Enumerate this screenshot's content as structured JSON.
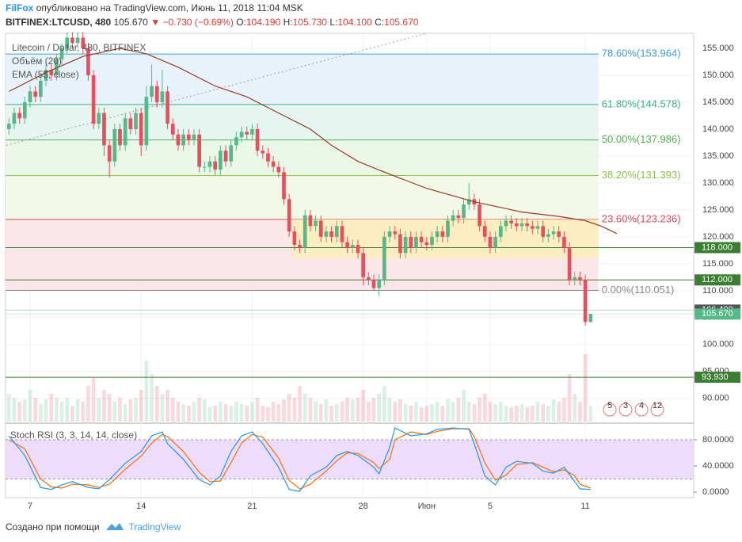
{
  "header": {
    "author": "FilFox",
    "published": "опубликовано на TradingView.com, Июнь 11, 2018 11:04 MSK",
    "symbol": "BITFINEX:LTCUSD, 480",
    "last": "105.670",
    "arrow": "▼",
    "change": "−0.730 (−0.69%)",
    "ohlc": [
      {
        "label": "O:",
        "value": "104.190"
      },
      {
        "label": "H:",
        "value": "105.730"
      },
      {
        "label": "L:",
        "value": "104.100"
      },
      {
        "label": "C:",
        "value": "105.670"
      }
    ]
  },
  "footer": {
    "made_with": "Создано при помощи",
    "brand": "TradingView"
  },
  "chart_data": {
    "type": "candlestick",
    "title": "Litecoin / Dollar, 480, BITFINEX",
    "indicators": [
      "Объём (20)",
      "EMA (55, close)"
    ],
    "up_color": "#53b987",
    "down_color": "#eb4d5c",
    "xlim": [
      -4.64,
      125.5
    ],
    "ylim": [
      85.7,
      157.8
    ],
    "vlim": [
      0,
      100
    ],
    "xticks": [
      {
        "value": 0,
        "label": "7"
      },
      {
        "value": 21,
        "label": "14"
      },
      {
        "value": 42,
        "label": "21"
      },
      {
        "value": 63,
        "label": "28"
      },
      {
        "value": 75,
        "label": "Июн"
      },
      {
        "value": 87,
        "label": "5"
      },
      {
        "value": 105,
        "label": "11"
      }
    ],
    "yticks": [
      {
        "value": 155,
        "label": "155.000"
      },
      {
        "value": 150,
        "label": "150.000"
      },
      {
        "value": 145,
        "label": "145.000"
      },
      {
        "value": 140,
        "label": "140.000"
      },
      {
        "value": 135,
        "label": "135.000"
      },
      {
        "value": 130,
        "label": "130.000"
      },
      {
        "value": 125,
        "label": "125.000"
      },
      {
        "value": 120,
        "label": "120.000"
      },
      {
        "value": 115,
        "label": "115.000"
      },
      {
        "value": 110,
        "label": "110.000"
      },
      {
        "value": 105,
        "label": "105.000"
      },
      {
        "value": 100,
        "label": "100.000"
      },
      {
        "value": 95,
        "label": "95.000"
      },
      {
        "value": 90,
        "label": "90.000"
      }
    ],
    "grid": true,
    "x": [
      -4,
      -3,
      -2,
      -1,
      0,
      1,
      2,
      3,
      4,
      5,
      6,
      7,
      8,
      9,
      10,
      11,
      12,
      13,
      14,
      15,
      16,
      17,
      18,
      19,
      20,
      21,
      22,
      23,
      24,
      25,
      26,
      27,
      28,
      29,
      30,
      31,
      32,
      33,
      34,
      35,
      36,
      37,
      38,
      39,
      40,
      41,
      42,
      43,
      44,
      45,
      46,
      47,
      48,
      49,
      50,
      51,
      52,
      53,
      54,
      55,
      56,
      57,
      58,
      59,
      60,
      61,
      62,
      63,
      64,
      65,
      66,
      67,
      68,
      69,
      70,
      71,
      72,
      73,
      74,
      75,
      76,
      77,
      78,
      79,
      80,
      81,
      82,
      83,
      84,
      85,
      86,
      87,
      88,
      89,
      90,
      91,
      92,
      93,
      94,
      95,
      96,
      97,
      98,
      99,
      100,
      101,
      102,
      103,
      104,
      105,
      106
    ],
    "open": [
      140,
      141,
      143,
      142,
      145,
      147,
      146,
      149,
      151,
      150,
      153,
      155,
      157,
      156,
      157,
      155,
      150,
      141,
      143,
      137,
      134,
      140,
      137,
      142,
      140,
      143,
      137,
      146,
      148,
      145,
      147,
      141,
      139,
      137,
      139,
      138,
      139,
      133,
      133,
      134,
      132.5,
      136,
      134,
      137,
      138.5,
      139.5,
      139,
      140,
      136,
      135.5,
      134,
      133,
      132,
      127,
      121,
      118.5,
      118,
      124,
      122,
      123,
      120,
      121,
      120,
      122,
      119,
      118,
      118.5,
      117,
      112.5,
      112,
      110.5,
      112,
      120,
      121,
      120.5,
      117,
      120,
      118,
      120,
      119,
      118.5,
      120,
      121,
      120,
      123,
      124,
      123.5,
      126,
      127,
      126,
      122,
      120,
      118,
      120,
      122,
      123,
      122.5,
      122,
      122.5,
      122,
      121.5,
      122,
      120,
      120.5,
      121,
      120,
      118,
      112,
      112.5,
      112,
      104.19
    ],
    "high": [
      142,
      144,
      144,
      146,
      148,
      148,
      150,
      152,
      152,
      154,
      156,
      158,
      158,
      158,
      158,
      156,
      151,
      144,
      144,
      138,
      141,
      141,
      143,
      143,
      144,
      144,
      148,
      152,
      149,
      151,
      148,
      142,
      140,
      140,
      140,
      140,
      140,
      134,
      135,
      135,
      137,
      137,
      138,
      139.5,
      140.5,
      140.5,
      141,
      141,
      137,
      136.5,
      135,
      134,
      133,
      128,
      122,
      119.5,
      125,
      125,
      124,
      124,
      122,
      122,
      123,
      123,
      120,
      119.5,
      119.5,
      118,
      113.5,
      113,
      113,
      121,
      122,
      122,
      121.5,
      121,
      121,
      121,
      121,
      120,
      121,
      122,
      122,
      124,
      125,
      125,
      127,
      130,
      128,
      127,
      123,
      121,
      121,
      123,
      124,
      124,
      123.5,
      123.5,
      123.5,
      123,
      123,
      123,
      121.5,
      122,
      122,
      121,
      119,
      113.5,
      113.5,
      113,
      105.73
    ],
    "low": [
      139,
      140,
      141,
      141,
      144,
      145,
      145,
      148,
      149,
      149,
      152,
      154,
      155,
      155,
      154,
      149,
      140,
      140,
      135,
      131,
      133,
      136,
      136,
      139,
      139,
      135,
      136,
      145,
      144,
      144,
      140,
      138,
      136,
      136,
      137,
      137,
      132,
      132,
      132,
      131.5,
      131.5,
      133,
      133,
      136,
      137.5,
      138,
      138,
      135,
      134.5,
      133,
      132,
      131,
      126,
      120,
      117.5,
      117,
      117,
      121,
      121,
      119,
      119,
      119,
      119,
      118,
      117,
      117,
      116,
      111,
      111,
      110,
      109,
      111,
      119,
      119.5,
      116,
      116,
      117,
      117,
      118,
      117.5,
      117.5,
      119,
      119,
      119,
      122,
      122.5,
      122.5,
      125,
      125,
      121,
      119,
      117,
      117,
      119,
      121,
      121.5,
      121,
      121,
      121,
      120.5,
      120.5,
      119,
      119,
      119.5,
      119,
      117,
      111,
      111,
      111,
      103.5,
      104.1
    ],
    "close": [
      141,
      143,
      142,
      145,
      147,
      146,
      149,
      151,
      150,
      153,
      155,
      157,
      156,
      157,
      155,
      150,
      141,
      143,
      137,
      134,
      140,
      137,
      142,
      140,
      143,
      137,
      146,
      148,
      145,
      147,
      141,
      139,
      137,
      139,
      138,
      139,
      133,
      133,
      134,
      132.5,
      136,
      134,
      137,
      138.5,
      139.5,
      139,
      140,
      136,
      135.5,
      134,
      133,
      132,
      127,
      121,
      118.5,
      118,
      124,
      122,
      123,
      120,
      121,
      120,
      122,
      119,
      118,
      118.5,
      117,
      112.5,
      112,
      110.5,
      112,
      120,
      121,
      120.5,
      117,
      120,
      118,
      120,
      119,
      118.5,
      120,
      121,
      120,
      123,
      124,
      123.5,
      126,
      127,
      126,
      122,
      120,
      118,
      120,
      122,
      123,
      122.5,
      122,
      122.5,
      122,
      121.5,
      122,
      120,
      120.5,
      121,
      120,
      118,
      112,
      112.5,
      112,
      104.19,
      105.67
    ],
    "volume": [
      35,
      30,
      25,
      28,
      40,
      30,
      22,
      28,
      35,
      30,
      25,
      30,
      20,
      28,
      25,
      45,
      55,
      30,
      40,
      35,
      25,
      30,
      22,
      28,
      30,
      40,
      77,
      60,
      45,
      35,
      40,
      30,
      25,
      22,
      20,
      25,
      30,
      28,
      18,
      20,
      25,
      22,
      20,
      25,
      22,
      20,
      25,
      30,
      20,
      18,
      25,
      22,
      28,
      35,
      30,
      45,
      35,
      30,
      25,
      22,
      28,
      20,
      22,
      25,
      30,
      28,
      30,
      40,
      25,
      30,
      35,
      45,
      30,
      25,
      28,
      22,
      20,
      25,
      18,
      20,
      22,
      25,
      20,
      28,
      25,
      30,
      40,
      25,
      22,
      30,
      35,
      25,
      22,
      25,
      20,
      18,
      20,
      22,
      18,
      20,
      25,
      22,
      20,
      28,
      25,
      30,
      60,
      35,
      25,
      85,
      20
    ],
    "ema": {
      "color": "#9b3a22",
      "x": [
        -4,
        3,
        10,
        17,
        22,
        28,
        35,
        41,
        47,
        53,
        57,
        62,
        66,
        71,
        75,
        84,
        93,
        100,
        105,
        108,
        111
      ],
      "values": [
        147,
        150.5,
        153.5,
        155,
        154,
        151.5,
        148,
        146,
        143,
        140,
        137,
        134,
        132.4,
        130.5,
        129,
        126.5,
        124.6,
        123.8,
        123,
        122,
        120.6
      ]
    },
    "trendline": {
      "color": "#9e9e9e",
      "x": [
        -4.5,
        75
      ],
      "values": [
        137,
        157.8
      ]
    },
    "zone": {
      "color": "#fbefb8",
      "x": [
        49.5,
        107.5
      ],
      "values": [
        123.236,
        116
      ]
    },
    "fib_x": [
      -4.64,
      107.5
    ],
    "fib": [
      {
        "label": "78.60%(153.964)",
        "value": 153.964,
        "color": "#3f9bd1",
        "fill": "#e7f2fa"
      },
      {
        "label": "61.80%(144.578)",
        "value": 144.578,
        "color": "#35b38a",
        "fill": "#e5f5ef"
      },
      {
        "label": "50.00%(137.986)",
        "value": 137.986,
        "color": "#4caf50",
        "fill": "#eaf7e8"
      },
      {
        "label": "38.20%(131.393)",
        "value": 131.393,
        "color": "#8bc34a",
        "fill": "#f2f9e7"
      },
      {
        "label": "23.60%(123.236)",
        "value": 123.236,
        "color": "#e04556",
        "fill": "#fbe7e9"
      },
      {
        "label": "0.00%(110.051)",
        "value": 110.051,
        "color": "#8a8a8a"
      }
    ],
    "lines": {
      "color": "#3b7d32",
      "levels": [
        {
          "value": 118,
          "label": "118.000"
        },
        {
          "value": 112,
          "label": "112.000"
        },
        {
          "value": 93.93,
          "label": "93.930"
        }
      ]
    },
    "price_tags": [
      {
        "value": 106.4,
        "label": "106.400",
        "color": "#555555"
      },
      {
        "value": 105.67,
        "label": "105.670",
        "color": "#53b987"
      }
    ],
    "events": [
      "5",
      "3",
      "4",
      "12"
    ],
    "stoch": {
      "title": "Stoch RSI (3, 3, 14, 14, close)",
      "ylim": [
        -8.5,
        101.8
      ],
      "band": [
        20,
        80
      ],
      "band_color": "#e8d3fb",
      "yticks": [
        {
          "value": 80,
          "label": "80.0000"
        },
        {
          "value": 40,
          "label": "40.0000"
        },
        {
          "value": 0,
          "label": "0.0000"
        }
      ],
      "k": {
        "color": "#2196f3",
        "x": [
          -4,
          -1,
          2,
          4,
          6,
          8,
          11,
          13,
          15,
          18,
          21,
          23,
          25,
          26,
          29,
          32,
          34,
          36,
          38,
          40,
          42,
          44,
          47,
          49,
          51,
          53,
          56,
          58,
          60,
          62,
          65,
          66,
          68,
          69,
          72,
          75,
          77,
          80,
          83,
          84,
          86,
          88,
          90,
          92,
          95,
          97,
          99,
          101,
          103,
          104,
          106
        ],
        "values": [
          86,
          56,
          7,
          4,
          11,
          16,
          7,
          5,
          19,
          44,
          62,
          86,
          92,
          74,
          50,
          19,
          11,
          25,
          62,
          86,
          92,
          74,
          38,
          4,
          1,
          25,
          38,
          56,
          62,
          56,
          38,
          28,
          68,
          98,
          86,
          89,
          96,
          98,
          96,
          74,
          25,
          11,
          38,
          47,
          44,
          32,
          29,
          38,
          16,
          5,
          4
        ]
      },
      "d": {
        "color": "#ff6d00",
        "x": [
          -4,
          -1,
          2,
          4,
          6,
          8,
          11,
          13,
          15,
          18,
          21,
          23,
          25,
          26,
          29,
          32,
          34,
          36,
          38,
          40,
          42,
          44,
          47,
          49,
          51,
          53,
          56,
          58,
          60,
          62,
          65,
          66,
          68,
          69,
          72,
          75,
          77,
          80,
          83,
          84,
          86,
          88,
          90,
          92,
          95,
          97,
          99,
          101,
          103,
          104,
          106
        ],
        "values": [
          80,
          66,
          20,
          8,
          6,
          12,
          11,
          7,
          12,
          35,
          55,
          75,
          88,
          85,
          62,
          30,
          16,
          17,
          45,
          75,
          88,
          84,
          52,
          18,
          5,
          12,
          32,
          48,
          60,
          59,
          45,
          36,
          50,
          80,
          92,
          88,
          93,
          97,
          97,
          85,
          45,
          18,
          26,
          42,
          45,
          38,
          31,
          34,
          25,
          12,
          6
        ]
      }
    }
  }
}
